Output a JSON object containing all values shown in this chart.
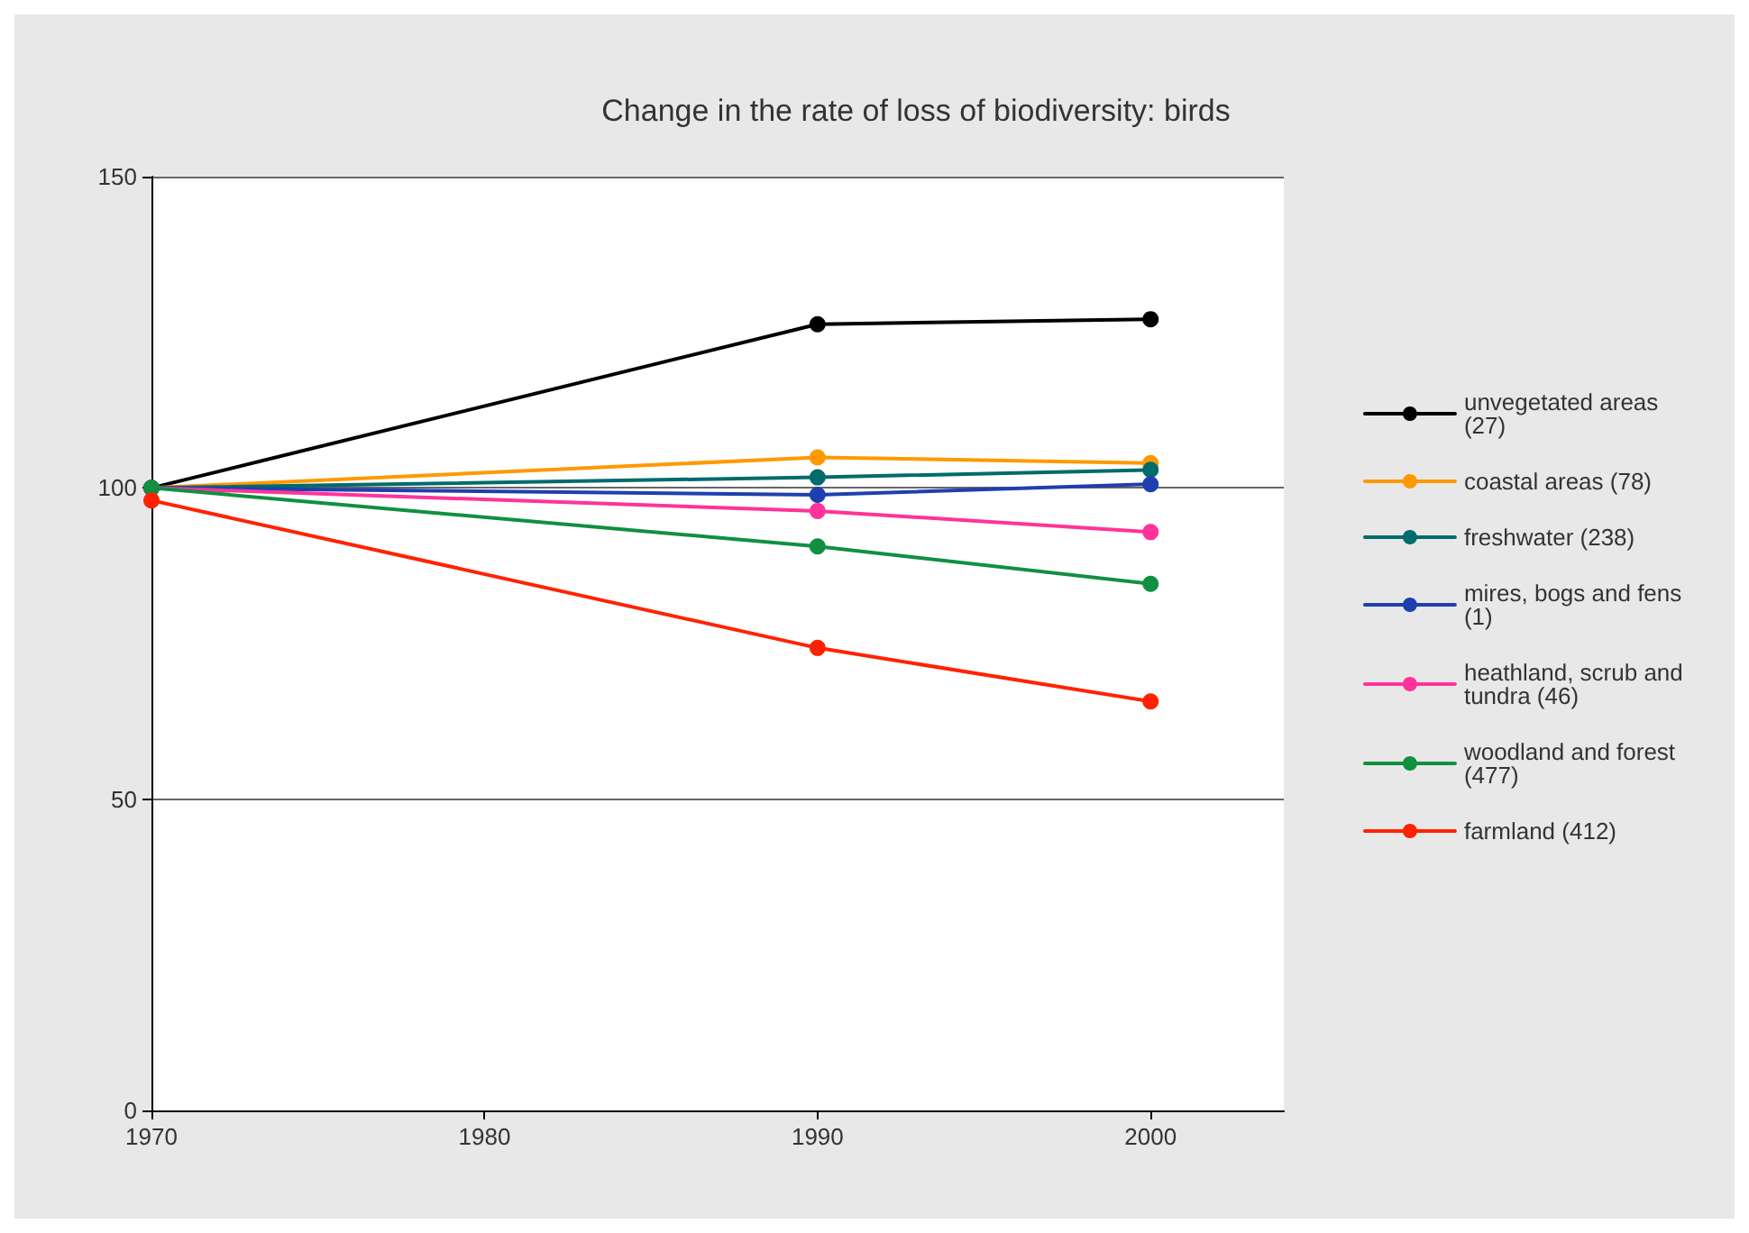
{
  "chart_data": {
    "type": "line",
    "title": "Change in the rate of loss of biodiversity: birds",
    "x": [
      1970,
      1990,
      2000
    ],
    "xlim": [
      1970,
      2004
    ],
    "xticks": [
      1970,
      1980,
      1990,
      2000
    ],
    "ylim": [
      0,
      150
    ],
    "yticks": [
      0,
      50,
      100,
      150
    ],
    "grid": "y",
    "legend": "right",
    "marker": "circle",
    "series": [
      {
        "name": "unvegetated areas (27)",
        "color": "#000000",
        "values": [
          100,
          126.3,
          127.1
        ]
      },
      {
        "name": "coastal areas (78)",
        "color": "#ff9900",
        "values": [
          100,
          104.9,
          104
        ]
      },
      {
        "name": "freshwater (238)",
        "color": "#006b6b",
        "values": [
          100,
          101.7,
          102.9
        ]
      },
      {
        "name": "mires, bogs and fens (1)",
        "color": "#1f3fb0",
        "values": [
          100,
          98.9,
          100.6
        ]
      },
      {
        "name": "heathland, scrub and tundra (46)",
        "color": "#ff3399",
        "values": [
          100,
          96.3,
          92.9
        ]
      },
      {
        "name": "woodland and forest (477)",
        "color": "#109040",
        "values": [
          100,
          90.6,
          84.6
        ]
      },
      {
        "name": "farmland (412)",
        "color": "#ff2200",
        "values": [
          98,
          74.3,
          65.7
        ]
      }
    ]
  }
}
